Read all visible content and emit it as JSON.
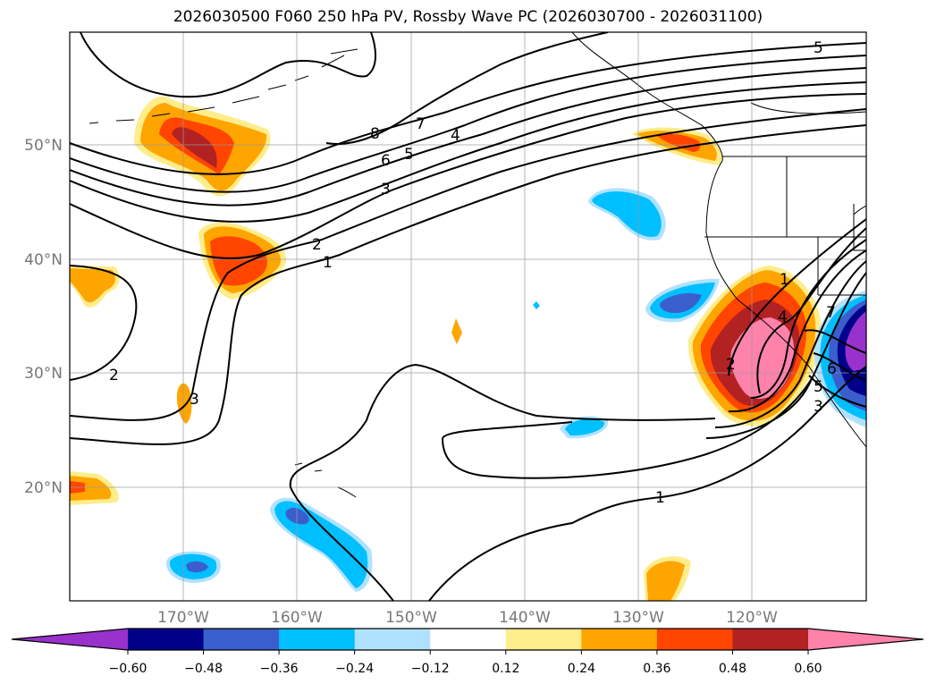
{
  "title": "2026030500 F060 250 hPa PV, Rossby Wave PC (2026030700 - 2026031100)",
  "map": {
    "extent": {
      "lon_min": -180,
      "lon_max": -110,
      "lat_min": 10,
      "lat_max": 60
    },
    "lat_labels": [
      "50°N",
      "40°N",
      "30°N",
      "20°N"
    ],
    "lon_labels": [
      "170°W",
      "160°W",
      "150°W",
      "140°W",
      "130°W",
      "120°W"
    ],
    "contour_labels": [
      "8",
      "7",
      "6",
      "5",
      "4",
      "3",
      "2",
      "1",
      "5",
      "2",
      "3",
      "1",
      "1",
      "4",
      "7",
      "6",
      "5",
      "3",
      "2"
    ]
  },
  "colorbar": {
    "ticks": [
      "−0.60",
      "−0.48",
      "−0.36",
      "−0.24",
      "−0.12",
      "0.12",
      "0.24",
      "0.36",
      "0.48",
      "0.60"
    ],
    "colors": [
      "#9932cc",
      "#00008b",
      "#3a5fcd",
      "#00bfff",
      "#b0e2ff",
      "#ffffff",
      "#ffec8b",
      "#ffa500",
      "#ff4500",
      "#b22222",
      "#ff82ab"
    ]
  }
}
